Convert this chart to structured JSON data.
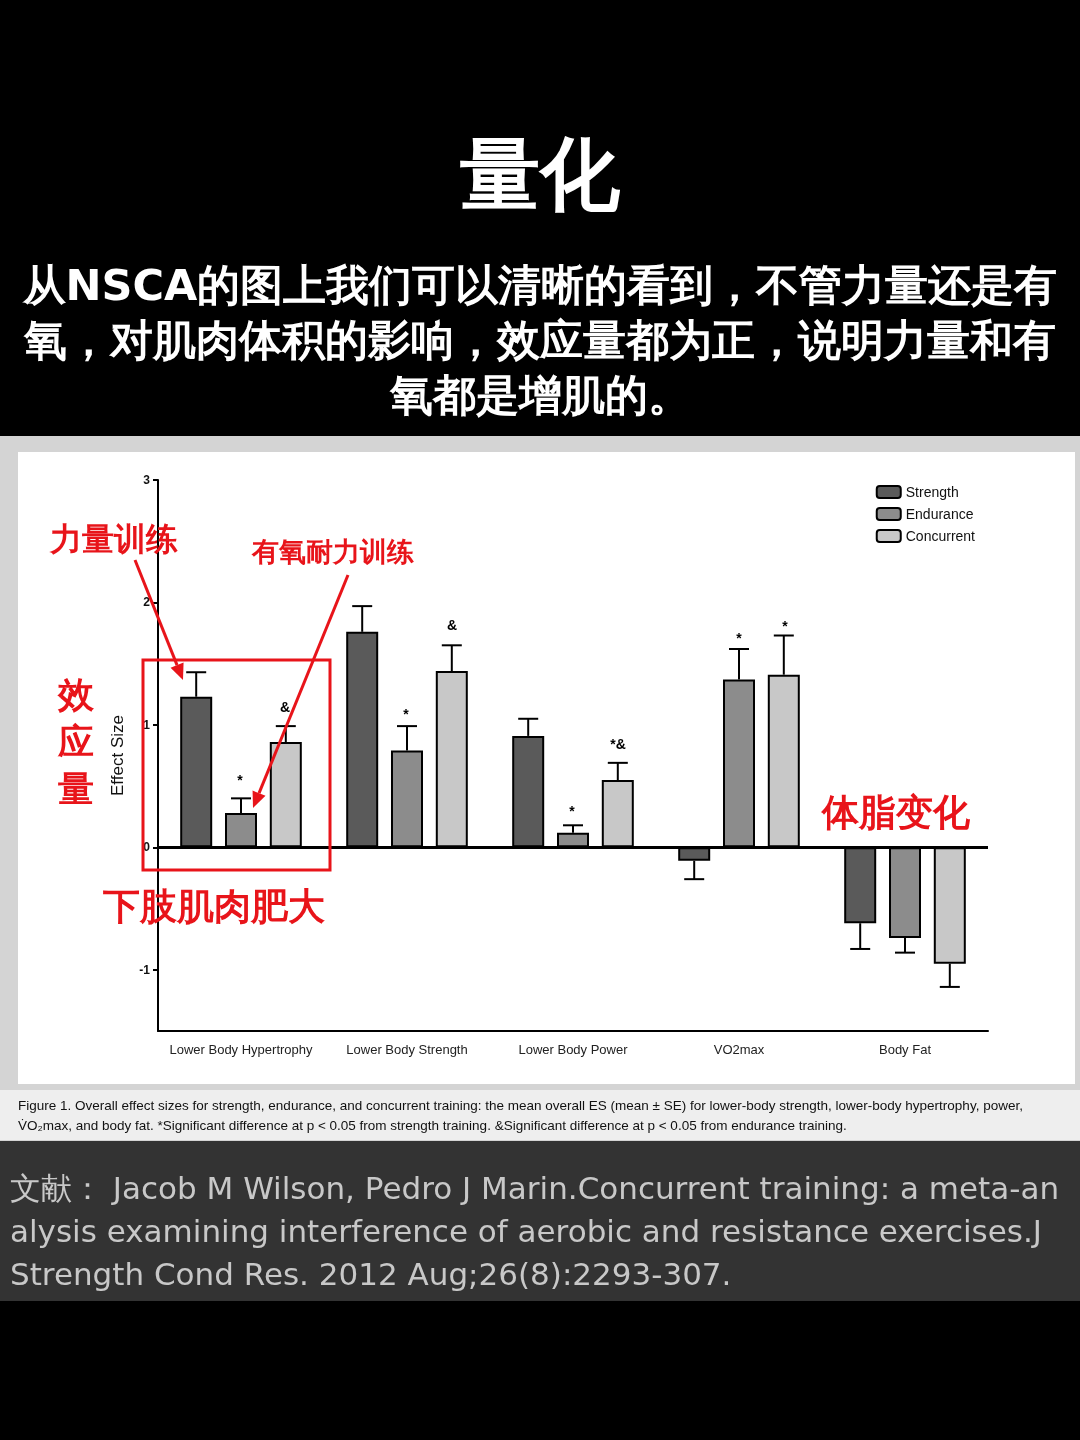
{
  "chart_data": {
    "type": "bar",
    "title": "量化",
    "subtitle": "从NSCA的图上我们可以清晰的看到，不管力量还是有氧，对肌肉体积的影响，效应量都为正，说明力量和有氧都是增肌的。",
    "ylabel": "Effect Size",
    "categories": [
      "Lower Body Hypertrophy",
      "Lower Body Strength",
      "Lower Body Power",
      "VO2max",
      "Body Fat"
    ],
    "series": [
      {
        "name": "Strength",
        "color": "#5a5a5a",
        "values": [
          1.23,
          1.76,
          0.91,
          -0.11,
          -0.62
        ],
        "errors": [
          [
            1.23,
            1.43
          ],
          [
            1.76,
            1.97
          ],
          [
            0.91,
            1.05
          ],
          [
            -0.26,
            -0.11
          ],
          [
            -0.83,
            -0.62
          ]
        ]
      },
      {
        "name": "Endurance",
        "color": "#8c8c8c",
        "values": [
          0.28,
          0.79,
          0.12,
          1.37,
          -0.74
        ],
        "errors": [
          [
            0.28,
            0.4
          ],
          [
            0.79,
            0.99
          ],
          [
            0.12,
            0.18
          ],
          [
            1.37,
            1.62
          ],
          [
            -0.86,
            -0.74
          ]
        ]
      },
      {
        "name": "Concurrent",
        "color": "#c8c8c8",
        "values": [
          0.86,
          1.44,
          0.55,
          1.41,
          -0.95
        ],
        "errors": [
          [
            0.86,
            0.99
          ],
          [
            1.44,
            1.65
          ],
          [
            0.55,
            0.69
          ],
          [
            1.41,
            1.73
          ],
          [
            -1.14,
            -0.95
          ]
        ]
      }
    ],
    "ylim": [
      -1.5,
      3
    ],
    "yticks": [
      -1,
      0,
      1,
      2,
      3
    ],
    "ref_lines": [
      {
        "axis": "y",
        "value": 0,
        "color": "#000000"
      }
    ],
    "grid": false,
    "legend": "top right",
    "annotations": [
      "力量训练",
      "有氧耐力训练",
      "效应量",
      "下肢肌肉肥大",
      "体脂变化",
      "*",
      "&",
      "*",
      "&",
      "*",
      "*&",
      "*",
      "*",
      "Figure 1. Overall effect sizes for strength, endurance, and concurrent training: the mean overall ES (mean ± SE) for lower-body strength, lower-body hypertrophy, power, V̇O₂max, and body fat. *Significant difference at p < 0.05 from strength training. &Significant difference at p < 0.05 from endurance training.",
      "文献：  Jacob M Wilson, Pedro J Marin.Concurrent training: a meta-analysis examining interference of aerobic and resistance exercises.J Strength Cond Res. 2012 Aug;26(8):2293-307."
    ]
  }
}
